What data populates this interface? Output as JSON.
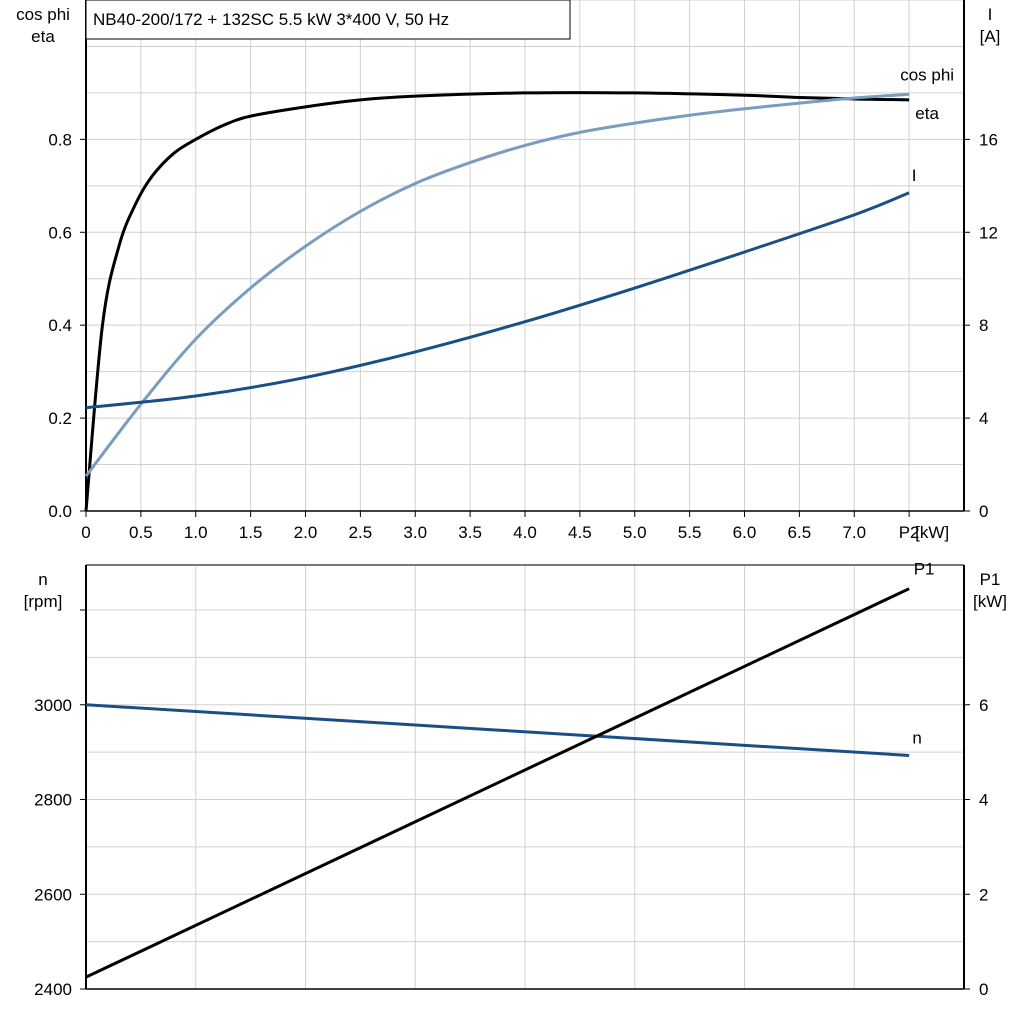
{
  "title": "NB40-200/172 + 132SC   5.5 kW   3*400 V, 50 Hz",
  "chart_data": [
    {
      "type": "line",
      "xlabel": "P2 [kW]",
      "xlabel_parts": [
        "P2",
        "[kW]"
      ],
      "xlim": [
        0,
        8
      ],
      "xticks": [
        "0",
        "0.5",
        "1.0",
        "1.5",
        "2.0",
        "2.5",
        "3.0",
        "3.5",
        "4.0",
        "4.5",
        "5.0",
        "5.5",
        "6.0",
        "6.5",
        "7.0"
      ],
      "ylabel_left": [
        "cos phi",
        "eta"
      ],
      "ylim_left": [
        0,
        1.1
      ],
      "yticks_left": [
        "0.0",
        "0.2",
        "0.4",
        "0.6",
        "0.8"
      ],
      "ylabel_right": [
        "I",
        "[A]"
      ],
      "ylim_right": [
        0,
        22
      ],
      "yticks_right": [
        "0",
        "4",
        "8",
        "12",
        "16"
      ],
      "grid": true,
      "series": [
        {
          "name": "eta",
          "axis": "left",
          "color": "#000000",
          "x": [
            0,
            0.15,
            0.3,
            0.45,
            0.6,
            0.8,
            1.0,
            1.25,
            1.5,
            2.0,
            2.5,
            3.0,
            4.0,
            5.0,
            6.0,
            6.5,
            7.0,
            7.5
          ],
          "y": [
            0,
            0.4,
            0.57,
            0.66,
            0.72,
            0.77,
            0.8,
            0.83,
            0.85,
            0.87,
            0.885,
            0.893,
            0.9,
            0.9,
            0.895,
            0.89,
            0.887,
            0.885
          ]
        },
        {
          "name": "cos phi",
          "axis": "left",
          "color": "#7a9cbf",
          "x": [
            0,
            0.5,
            1.0,
            1.5,
            2.0,
            2.5,
            3.0,
            3.5,
            4.0,
            4.5,
            5.0,
            5.5,
            6.0,
            6.5,
            7.0,
            7.5
          ],
          "y": [
            0.075,
            0.23,
            0.37,
            0.48,
            0.57,
            0.645,
            0.705,
            0.75,
            0.787,
            0.815,
            0.835,
            0.852,
            0.866,
            0.878,
            0.889,
            0.897
          ]
        },
        {
          "name": "I",
          "axis": "right",
          "color": "#1a4f85",
          "x": [
            0,
            1.0,
            2.0,
            3.0,
            4.0,
            5.0,
            6.0,
            7.0,
            7.5
          ],
          "y": [
            4.45,
            4.95,
            5.75,
            6.85,
            8.15,
            9.6,
            11.15,
            12.75,
            13.7
          ]
        }
      ]
    },
    {
      "type": "line",
      "xlim": [
        0,
        8
      ],
      "ylabel_left": [
        "n",
        "[rpm]"
      ],
      "ylim_left": [
        2400,
        3295
      ],
      "yticks_left": [
        "2400",
        "2600",
        "2800",
        "3000"
      ],
      "ylabel_right": [
        "P1",
        "[kW]"
      ],
      "ylim_right": [
        0,
        8.95
      ],
      "yticks_right": [
        "0",
        "2",
        "4",
        "6"
      ],
      "grid": true,
      "series": [
        {
          "name": "n",
          "axis": "left",
          "color": "#1a4f85",
          "x": [
            0,
            7.5
          ],
          "y": [
            3000,
            2893
          ]
        },
        {
          "name": "P1",
          "axis": "right",
          "color": "#000000",
          "x": [
            0,
            7.5
          ],
          "y": [
            0.25,
            8.45
          ]
        }
      ]
    }
  ]
}
